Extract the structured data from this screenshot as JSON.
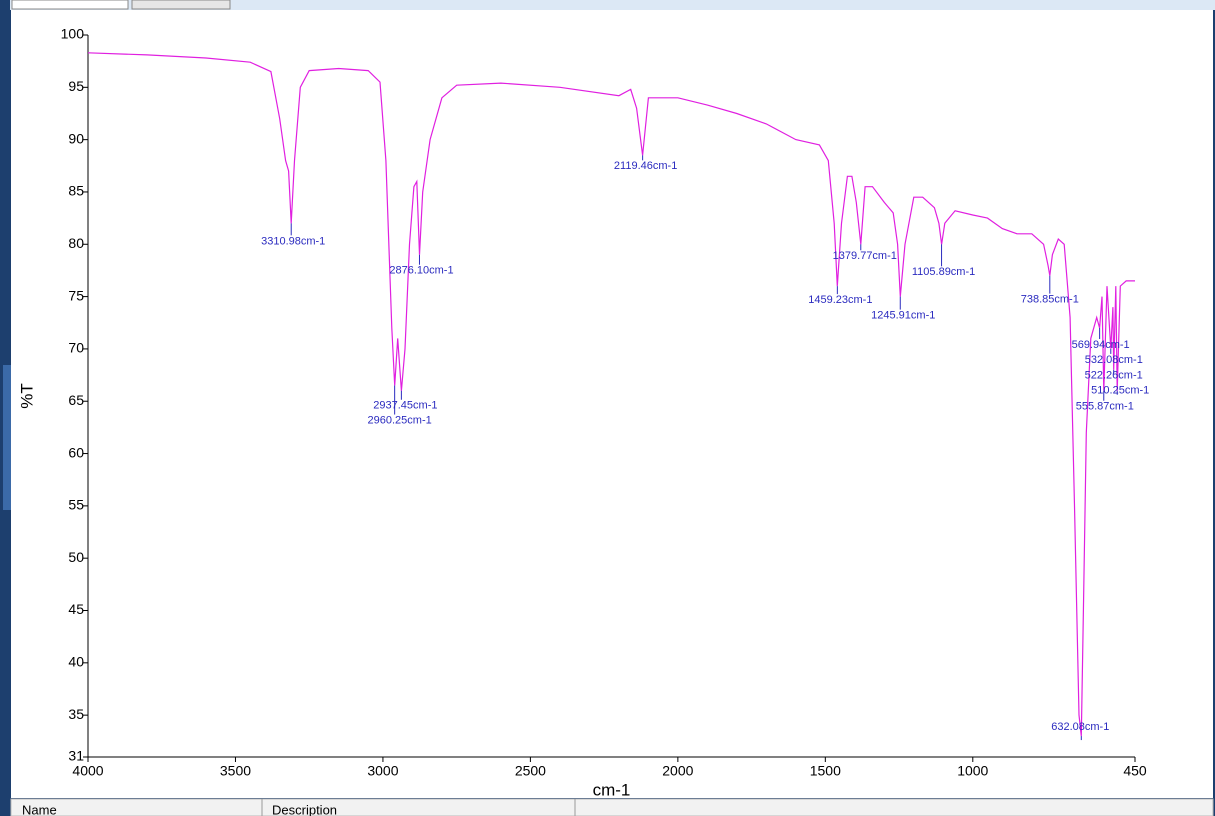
{
  "ui": {
    "columns": [
      "Name",
      "Description"
    ]
  },
  "chart_data": {
    "type": "line",
    "x_label": "cm-1",
    "y_label": "%T",
    "xlim": [
      4000,
      450
    ],
    "ylim": [
      31,
      100
    ],
    "xticks": [
      4000,
      3500,
      3000,
      2500,
      2000,
      1500,
      1000,
      450
    ],
    "yticks": [
      31,
      35,
      40,
      45,
      50,
      55,
      60,
      65,
      70,
      75,
      80,
      85,
      90,
      95,
      100
    ],
    "x": [
      4000,
      3800,
      3600,
      3450,
      3380,
      3350,
      3330,
      3320,
      3310.98,
      3300,
      3280,
      3250,
      3150,
      3050,
      3010,
      2990,
      2970,
      2960.25,
      2950,
      2937.45,
      2925,
      2910,
      2895,
      2885,
      2876.1,
      2865,
      2840,
      2800,
      2750,
      2600,
      2400,
      2200,
      2160,
      2140,
      2119.46,
      2100,
      2000,
      1900,
      1800,
      1700,
      1600,
      1520,
      1490,
      1470,
      1459.23,
      1445,
      1425,
      1410,
      1395,
      1379.77,
      1365,
      1340,
      1300,
      1270,
      1255,
      1245.91,
      1230,
      1200,
      1170,
      1130,
      1115,
      1105.89,
      1095,
      1060,
      1000,
      950,
      900,
      850,
      800,
      760,
      745,
      738.85,
      730,
      710,
      690,
      670,
      655,
      640,
      632.08,
      625,
      615,
      600,
      580,
      569.94,
      562,
      555.87,
      545,
      532.08,
      525,
      522.26,
      515,
      510.25,
      500,
      480,
      460,
      450
    ],
    "series": [
      {
        "color": "#e020e0",
        "values": [
          98.3,
          98.1,
          97.8,
          97.4,
          96.5,
          92,
          88,
          87,
          82,
          88,
          95,
          96.6,
          96.8,
          96.6,
          95.5,
          88,
          72,
          66.5,
          71,
          66,
          70,
          80,
          85.5,
          86,
          79,
          85,
          90,
          94,
          95.2,
          95.4,
          95,
          94.2,
          94.8,
          93,
          88.5,
          94,
          94,
          93.3,
          92.5,
          91.5,
          90,
          89.5,
          88,
          82,
          76,
          82,
          86.5,
          86.5,
          84,
          80,
          85.5,
          85.5,
          84,
          83,
          80,
          75,
          80,
          84.5,
          84.5,
          83.5,
          82,
          80,
          82,
          83.2,
          82.8,
          82.5,
          81.5,
          81,
          81,
          80,
          78,
          77,
          79,
          80.5,
          80,
          73,
          55,
          35,
          33,
          45,
          62,
          71,
          73,
          72,
          75,
          66,
          76,
          70,
          74,
          68,
          76,
          66,
          76,
          76.5,
          76.5,
          76.5
        ]
      }
    ],
    "annotation_color": "#2b2bbf",
    "annotations": [
      {
        "x": 3310.98,
        "y": 82,
        "label": "3310.98cm-1"
      },
      {
        "x": 2960.25,
        "y": 66.5,
        "label": "2960.25cm-1"
      },
      {
        "x": 2937.45,
        "y": 66,
        "label": "2937.45cm-1"
      },
      {
        "x": 2876.1,
        "y": 79,
        "label": "2876.10cm-1"
      },
      {
        "x": 2119.46,
        "y": 88.5,
        "label": "2119.46cm-1"
      },
      {
        "x": 1459.23,
        "y": 76,
        "label": "1459.23cm-1"
      },
      {
        "x": 1379.77,
        "y": 80,
        "label": "1379.77cm-1"
      },
      {
        "x": 1245.91,
        "y": 75,
        "label": "1245.91cm-1"
      },
      {
        "x": 1105.89,
        "y": 80,
        "label": "1105.89cm-1"
      },
      {
        "x": 738.85,
        "y": 77,
        "label": "738.85cm-1"
      },
      {
        "x": 632.08,
        "y": 33,
        "label": "632.08cm-1"
      },
      {
        "x": 569.94,
        "y": 72,
        "label": "569.94cm-1"
      },
      {
        "x": 532.08,
        "y": 70,
        "label": "532.08cm-1"
      },
      {
        "x": 522.26,
        "y": 68,
        "label": "522.26cm-1"
      },
      {
        "x": 510.25,
        "y": 66,
        "label": "510.25cm-1"
      },
      {
        "x": 555.87,
        "y": 66,
        "label": "555.87cm-1"
      }
    ]
  }
}
